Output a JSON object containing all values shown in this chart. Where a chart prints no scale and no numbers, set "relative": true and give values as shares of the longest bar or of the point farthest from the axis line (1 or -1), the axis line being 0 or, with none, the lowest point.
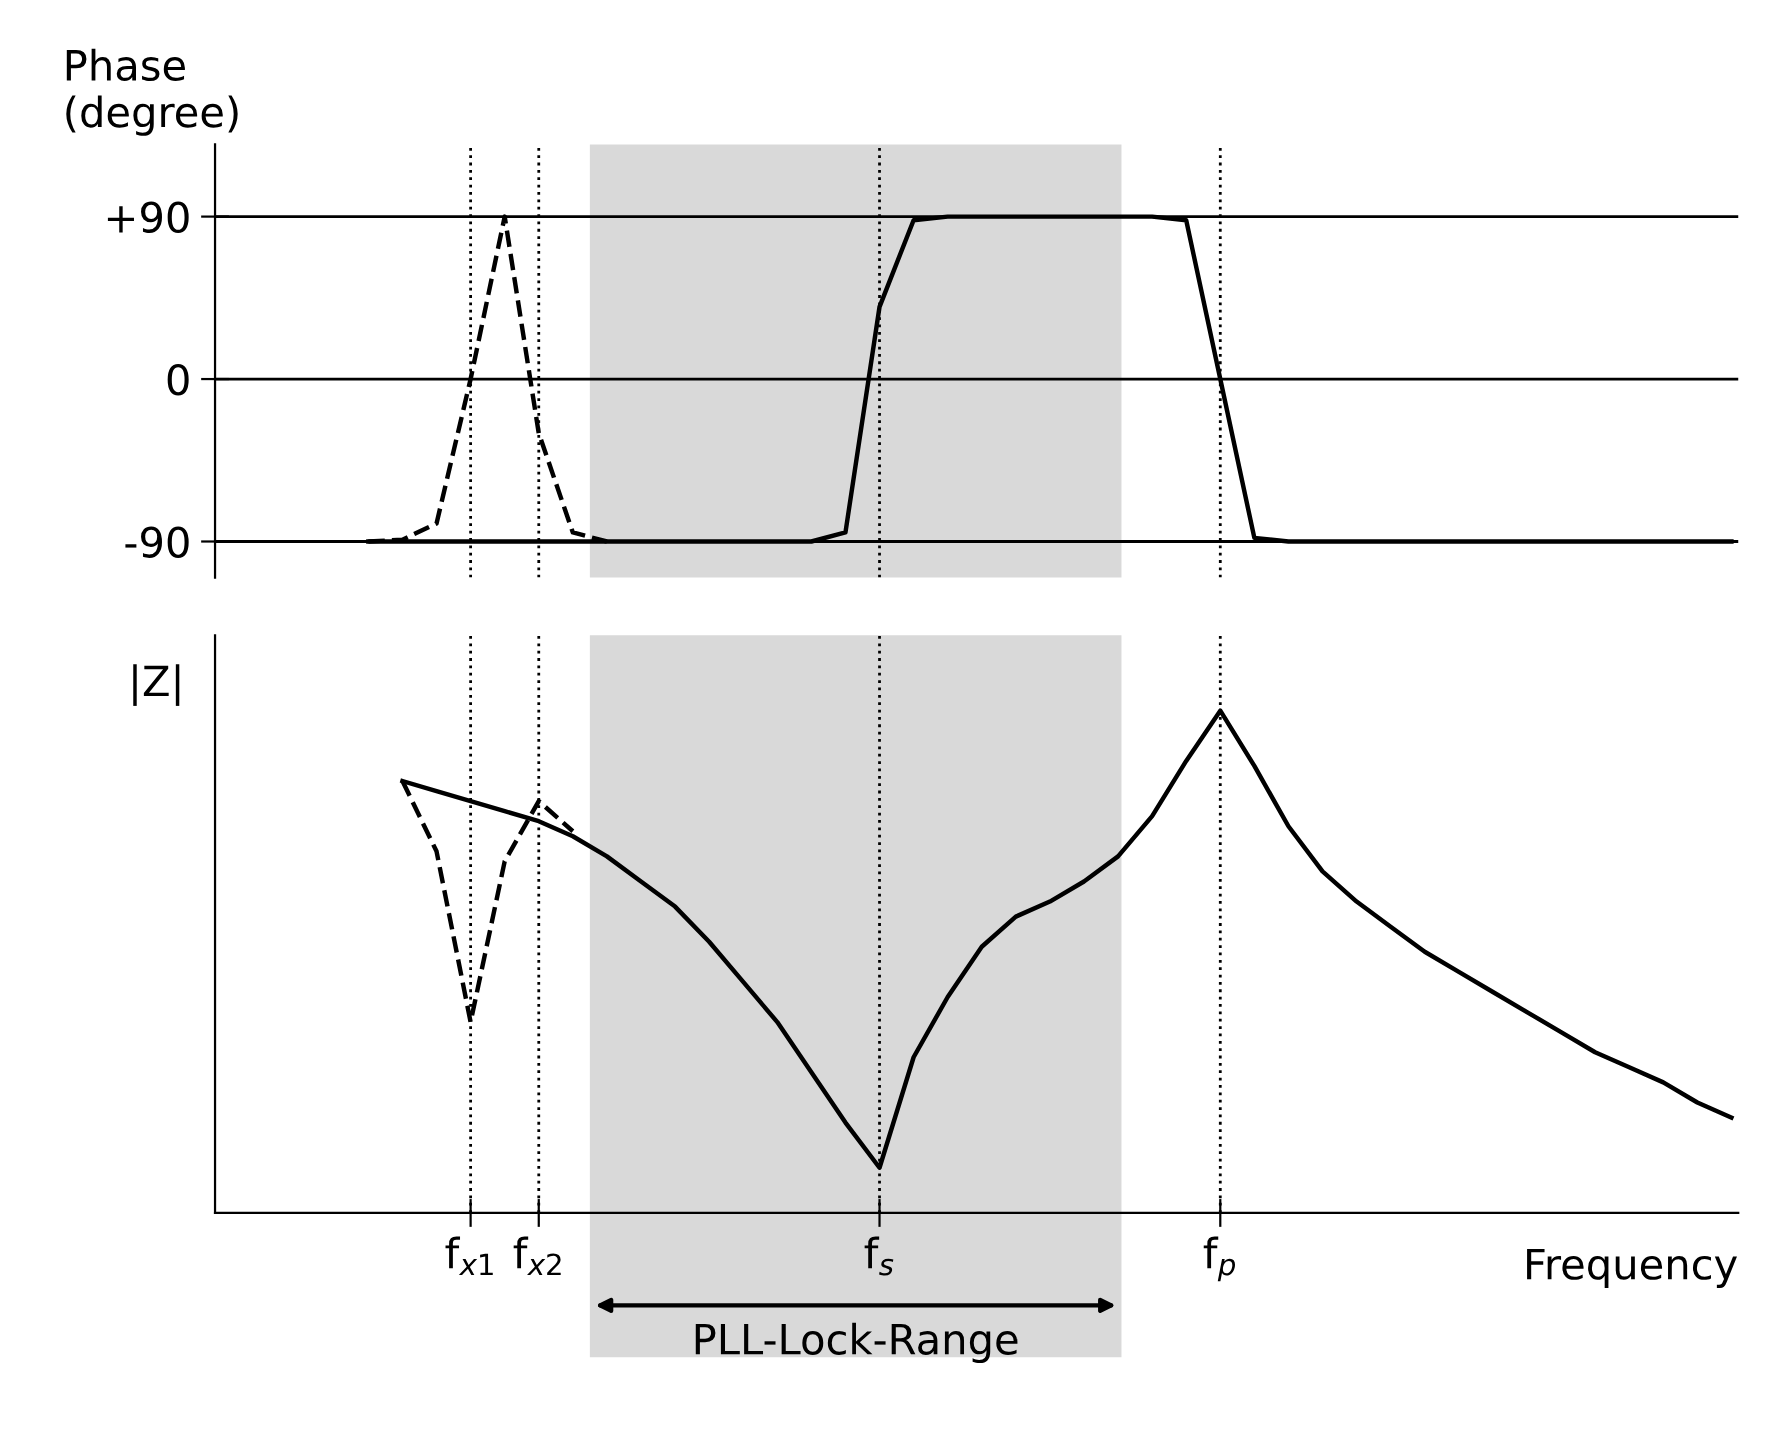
{
  "chart_data": [
    {
      "type": "line",
      "ylabel": "Phase\n(degree)",
      "categories": [
        null,
        null,
        null,
        null,
        null,
        null,
        null,
        "f$_{x1}$",
        null,
        "f$_{x2}$",
        null,
        null,
        null,
        null,
        null,
        null,
        null,
        null,
        null,
        "f$_{s}$",
        null,
        null,
        null,
        null,
        null,
        null,
        null,
        null,
        null,
        "f$_{p}$",
        null,
        null,
        null,
        null,
        null,
        null,
        null,
        null,
        null,
        null,
        null,
        null,
        null,
        null,
        null
      ],
      "ylim": [
        -110,
        130
      ],
      "yticks": [
        {
          "value": 90,
          "label": "+90"
        },
        0,
        {
          "value": -90,
          "label": "-90"
        }
      ],
      "grid": "y",
      "tick_labels": "y",
      "ref_lines": [
        {
          "axis": "x",
          "value": "f$_{x1}$",
          "line_style": "dotted"
        },
        {
          "axis": "x",
          "value": "f$_{x2}$",
          "line_style": "dotted"
        },
        {
          "axis": "x",
          "value": "f$_{s}$",
          "line_style": "dotted"
        },
        {
          "axis": "x",
          "value": "f$_{p}$",
          "line_style": "dotted"
        }
      ],
      "series": [
        {
          "color": "#000000",
          "line_style": "solid",
          "values": [
            null,
            null,
            null,
            null,
            -90,
            -90,
            -90,
            -90,
            -90,
            -90,
            -90,
            -90,
            -90,
            -90,
            -90,
            -90,
            -90,
            -90,
            -85,
            40,
            88,
            90,
            90,
            90,
            90,
            90,
            90,
            90,
            88,
            0,
            -88,
            -90,
            -90,
            -90,
            -90,
            -90,
            -90,
            -90,
            -90,
            -90,
            -90,
            -90,
            -90,
            -90,
            -90
          ]
        },
        {
          "color": "#000000",
          "line_style": "dashed",
          "values": [
            null,
            null,
            null,
            null,
            -90,
            -89,
            -80,
            0,
            90,
            -30,
            -85,
            -90,
            null,
            null,
            null,
            null,
            null,
            null,
            null,
            null,
            null,
            null,
            null,
            null,
            null,
            null,
            null,
            null,
            null,
            null,
            null,
            null,
            null,
            null,
            null,
            null,
            null,
            null,
            null,
            null,
            null,
            null,
            null,
            null,
            null
          ]
        }
      ]
    },
    {
      "type": "line",
      "ylabel": "|Z|",
      "xlabel": "Frequency",
      "relative": true,
      "categories": [
        null,
        null,
        null,
        null,
        null,
        null,
        null,
        "f$_{x1}$",
        null,
        "f$_{x2}$",
        null,
        null,
        null,
        null,
        null,
        null,
        null,
        null,
        null,
        "f$_{s}$",
        null,
        null,
        null,
        null,
        null,
        null,
        null,
        null,
        null,
        "f$_{p}$",
        null,
        null,
        null,
        null,
        null,
        null,
        null,
        null,
        null,
        null,
        null,
        null,
        null,
        null,
        null
      ],
      "tick_labels": "x",
      "annotations": [
        "PLL-Lock-Range"
      ],
      "ref_lines": [
        {
          "axis": "x",
          "value": "f$_{x1}$",
          "line_style": "dotted"
        },
        {
          "axis": "x",
          "value": "f$_{x2}$",
          "line_style": "dotted"
        },
        {
          "axis": "x",
          "value": "f$_{s}$",
          "line_style": "dotted"
        },
        {
          "axis": "x",
          "value": "f$_{p}$",
          "line_style": "dotted"
        }
      ],
      "series": [
        {
          "color": "#000000",
          "line_style": "solid",
          "values": [
            null,
            null,
            null,
            null,
            null,
            0.86,
            0.84,
            0.82,
            0.8,
            0.78,
            0.75,
            0.71,
            0.66,
            0.61,
            0.54,
            0.46,
            0.38,
            0.28,
            0.18,
            0.09,
            0.31,
            0.43,
            0.53,
            0.59,
            0.62,
            0.66,
            0.71,
            0.79,
            0.9,
            1,
            0.89,
            0.77,
            0.68,
            0.62,
            0.57,
            0.52,
            0.48,
            0.44,
            0.4,
            0.36,
            0.32,
            0.29,
            0.26,
            0.22,
            0.19
          ]
        },
        {
          "color": "#000000",
          "line_style": "dashed",
          "values": [
            null,
            null,
            null,
            null,
            null,
            0.86,
            0.72,
            0.38,
            0.7,
            0.82,
            0.76,
            null,
            null,
            null,
            null,
            null,
            null,
            null,
            null,
            null,
            null,
            null,
            null,
            null,
            null,
            null,
            null,
            null,
            null,
            null,
            null,
            null,
            null,
            null,
            null,
            null,
            null,
            null,
            null,
            null,
            null,
            null,
            null,
            null,
            null
          ]
        }
      ]
    }
  ]
}
